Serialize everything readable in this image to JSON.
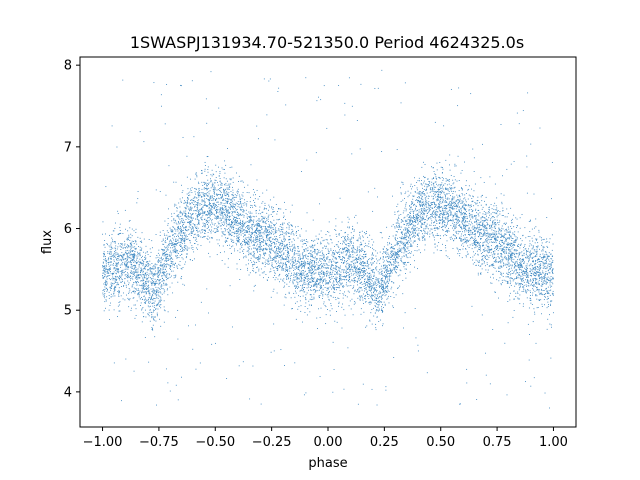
{
  "chart_data": {
    "type": "scatter",
    "title": "1SWASPJ131934.70-521350.0 Period 4624325.0s",
    "xlabel": "phase",
    "ylabel": "flux",
    "xlim": [
      -1.1,
      1.1
    ],
    "ylim": [
      3.57,
      8.1
    ],
    "xticks": [
      -1.0,
      -0.75,
      -0.5,
      -0.25,
      0.0,
      0.25,
      0.5,
      0.75,
      1.0
    ],
    "xtick_labels": [
      "−1.00",
      "−0.75",
      "−0.50",
      "−0.25",
      "0.00",
      "0.25",
      "0.50",
      "0.75",
      "1.00"
    ],
    "yticks": [
      4,
      5,
      6,
      7,
      8
    ],
    "ytick_labels": [
      "4",
      "5",
      "6",
      "7",
      "8"
    ],
    "grid": false,
    "point_color": "#3a86c0",
    "series": [
      {
        "phase_profile": {
          "x": [
            -1.0,
            -0.95,
            -0.9,
            -0.85,
            -0.8,
            -0.775,
            -0.75,
            -0.7,
            -0.65,
            -0.6,
            -0.55,
            -0.5,
            -0.45,
            -0.4,
            -0.35,
            -0.3,
            -0.25,
            -0.2,
            -0.15,
            -0.1,
            -0.05,
            0.0,
            0.05,
            0.1,
            0.15,
            0.2,
            0.225,
            0.25,
            0.3,
            0.35,
            0.4,
            0.45,
            0.5,
            0.55,
            0.6,
            0.65,
            0.7,
            0.75,
            0.8,
            0.85,
            0.9,
            0.95,
            1.0
          ],
          "y_median": [
            5.45,
            5.5,
            5.6,
            5.5,
            5.35,
            5.2,
            5.4,
            5.7,
            5.95,
            6.15,
            6.3,
            6.3,
            6.25,
            6.1,
            5.95,
            5.9,
            5.85,
            5.7,
            5.55,
            5.5,
            5.5,
            5.45,
            5.5,
            5.6,
            5.5,
            5.35,
            5.2,
            5.4,
            5.7,
            5.95,
            6.15,
            6.3,
            6.3,
            6.25,
            6.1,
            5.95,
            5.9,
            5.85,
            5.7,
            5.55,
            5.5,
            5.5,
            5.45
          ],
          "spread": 0.45
        },
        "point_count": 9000,
        "outlier_range": [
          3.8,
          7.95
        ]
      }
    ]
  }
}
